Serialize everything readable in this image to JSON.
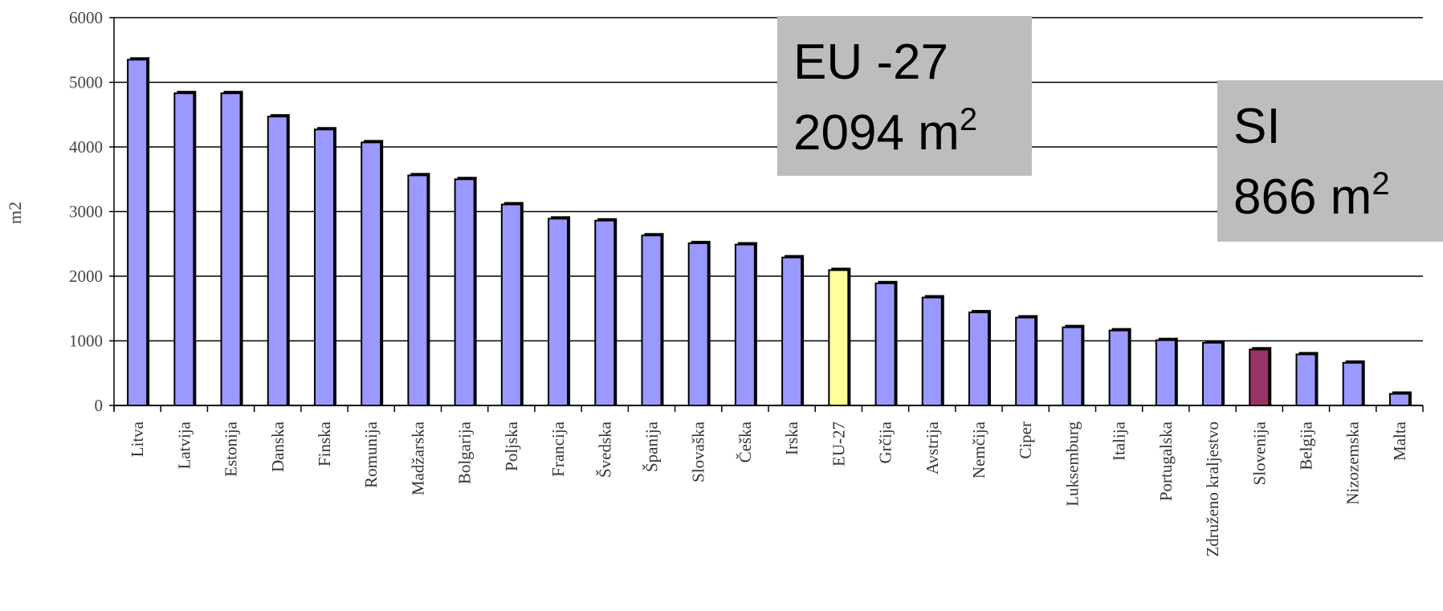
{
  "chart_data": {
    "type": "bar",
    "ylabel": "m2",
    "xlabel": "",
    "ylim": [
      0,
      6000
    ],
    "yticks": [
      "0",
      "1000",
      "2000",
      "3000",
      "4000",
      "5000",
      "6000"
    ],
    "grid": true,
    "categories": [
      "Litva",
      "Latvija",
      "Estonija",
      "Danska",
      "Finska",
      "Romunija",
      "Madžarska",
      "Bolgarija",
      "Poljska",
      "Francija",
      "Švedska",
      "Španija",
      "Slovaška",
      "Češka",
      "Irska",
      "EU-27",
      "Grčija",
      "Avstrija",
      "Nemčija",
      "Ciper",
      "Luksemburg",
      "Italija",
      "Portugalska",
      "Združeno kraljestvo",
      "Slovenija",
      "Belgija",
      "Nizozemska",
      "Malta"
    ],
    "values": [
      5350,
      4830,
      4830,
      4470,
      4270,
      4070,
      3560,
      3500,
      3110,
      2890,
      2860,
      2630,
      2510,
      2490,
      2290,
      2094,
      1890,
      1670,
      1440,
      1360,
      1210,
      1160,
      1010,
      970,
      866,
      790,
      660,
      180
    ],
    "colors": {
      "default": "#9999ff",
      "EU-27": "#ffff99",
      "Slovenija": "#993366",
      "outline": "#000000",
      "grid": "#000000"
    }
  },
  "callouts": {
    "eu": {
      "line1": "EU -27",
      "line2_value": "2094 m",
      "line2_sup": "2"
    },
    "si": {
      "line1": "SI",
      "line2_value": "866 m",
      "line2_sup": "2"
    }
  }
}
